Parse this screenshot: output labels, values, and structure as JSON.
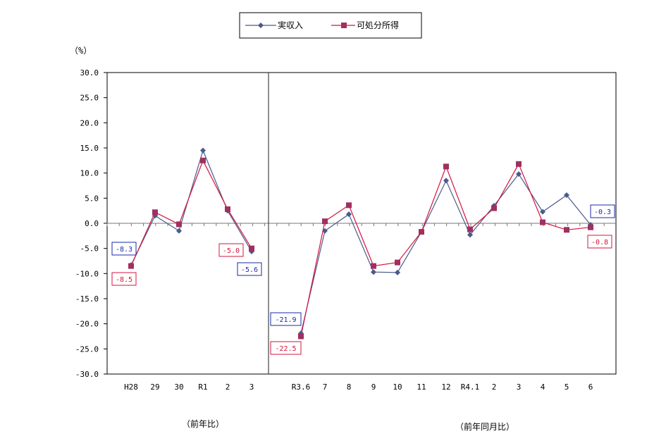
{
  "chart_data": {
    "type": "line",
    "unit_label": "（%）",
    "ylim": [
      -30,
      30
    ],
    "y_ticks": [
      "30.0",
      "25.0",
      "20.0",
      "15.0",
      "10.0",
      "5.0",
      "0.0",
      "-5.0",
      "-10.0",
      "-15.0",
      "-20.0",
      "-25.0",
      "-30.0"
    ],
    "grid": false,
    "legend_position": "top-center",
    "sections": [
      {
        "label": "（前年比）",
        "categories": [
          "H28",
          "29",
          "30",
          "R1",
          "2",
          "3"
        ]
      },
      {
        "label": "（前年同月比）",
        "categories": [
          "R3.6",
          "7",
          "8",
          "9",
          "10",
          "11",
          "12",
          "R4.1",
          "2",
          "3",
          "4",
          "5",
          "6"
        ]
      }
    ],
    "series": [
      {
        "name": "実収入",
        "color": "#4a5a8c",
        "marker": "diamond",
        "values": [
          [
            -8.3,
            1.5,
            -1.5,
            14.5,
            2.5,
            -5.6
          ],
          [
            -21.9,
            -1.5,
            1.8,
            -9.7,
            -9.8,
            -1.7,
            8.5,
            -2.3,
            3.5,
            9.8,
            2.3,
            5.6,
            -0.3
          ]
        ]
      },
      {
        "name": "可処分所得",
        "color": "#d4143c",
        "marker_color": "#a03060",
        "marker": "square",
        "values": [
          [
            -8.5,
            2.2,
            -0.2,
            12.5,
            2.8,
            -5.0
          ],
          [
            -22.5,
            0.4,
            3.6,
            -8.5,
            -7.8,
            -1.7,
            11.3,
            -1.2,
            3.0,
            11.8,
            0.2,
            -1.3,
            -0.8
          ]
        ]
      }
    ],
    "annotations": [
      {
        "text": "-8.3",
        "series": 0
      },
      {
        "text": "-8.5",
        "series": 1
      },
      {
        "text": "-5.0",
        "series": 1
      },
      {
        "text": "-5.6",
        "series": 0
      },
      {
        "text": "-21.9",
        "series": 0
      },
      {
        "text": "-22.5",
        "series": 1
      },
      {
        "text": "-0.3",
        "series": 0
      },
      {
        "text": "-0.8",
        "series": 1
      }
    ]
  }
}
